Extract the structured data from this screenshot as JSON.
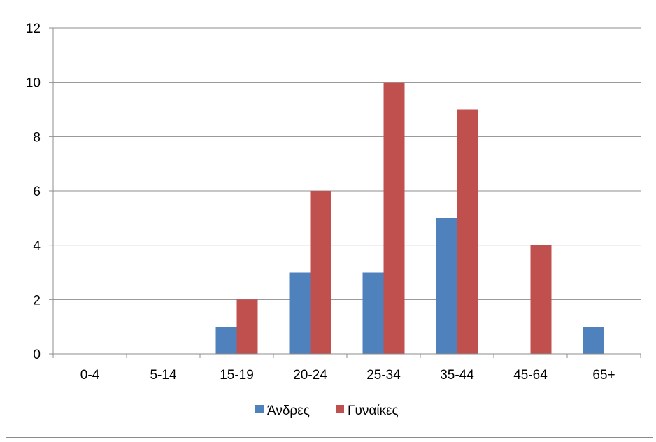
{
  "chart_data": {
    "type": "bar",
    "title": "",
    "xlabel": "",
    "ylabel": "",
    "categories": [
      "0-4",
      "5-14",
      "15-19",
      "20-24",
      "25-34",
      "35-44",
      "45-64",
      "65+"
    ],
    "series": [
      {
        "name": "Άνδρες",
        "color": "#4f81bd",
        "values": [
          0,
          0,
          1,
          3,
          3,
          5,
          0,
          1
        ]
      },
      {
        "name": "Γυναίκες",
        "color": "#c0504d",
        "values": [
          0,
          0,
          2,
          6,
          10,
          9,
          4,
          0
        ]
      }
    ],
    "ylim": [
      0,
      12
    ],
    "yticks": [
      "0",
      "2",
      "4",
      "6",
      "8",
      "10",
      "12"
    ],
    "grid": true,
    "legend_position": "bottom"
  }
}
